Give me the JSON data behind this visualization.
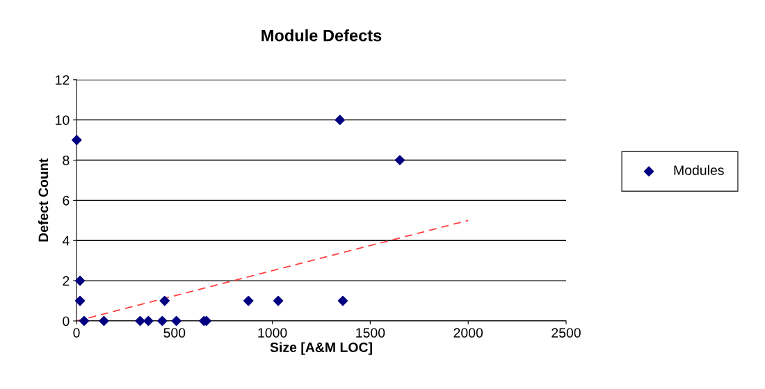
{
  "chart_data": {
    "type": "scatter",
    "title": "Module Defects",
    "xlabel": "Size [A&M LOC]",
    "ylabel": "Defect Count",
    "xlim": [
      0,
      2500
    ],
    "xticks": [
      0,
      500,
      1000,
      1500,
      2000,
      2500
    ],
    "ylim": [
      0,
      12
    ],
    "yticks": [
      0,
      2,
      4,
      6,
      8,
      10,
      12
    ],
    "grid": "y",
    "legend": "right",
    "marker": "diamond",
    "series": [
      {
        "name": "Modules",
        "color": "#000080",
        "x": [
          1,
          18,
          18,
          39,
          140,
          325,
          367,
          438,
          450,
          510,
          651,
          663,
          878,
          1030,
          1345,
          1360,
          1651
        ],
        "values": [
          9,
          2,
          1,
          0,
          0,
          0,
          0,
          0,
          1,
          0,
          0,
          0,
          1,
          1,
          10,
          1,
          8
        ]
      },
      {
        "type": "line",
        "color": "#ff4040",
        "line_style": "dashed",
        "marker": "none",
        "x": [
          0,
          2000
        ],
        "values": [
          0,
          5
        ]
      }
    ]
  }
}
